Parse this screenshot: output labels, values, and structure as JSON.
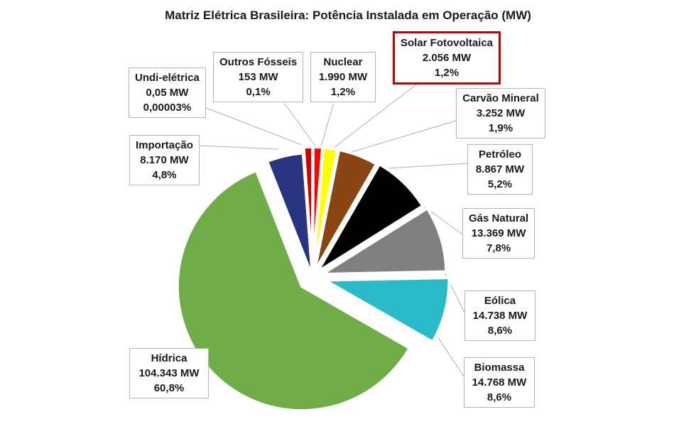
{
  "chart_data": {
    "type": "pie",
    "title": "Matriz Elétrica Brasileira: Potência Instalada em Operação (MW)",
    "slices": [
      {
        "name": "Solar Fotovoltaica",
        "value_label": "2.056 MW",
        "pct_label": "1,2%",
        "value": 2056,
        "color": "#ff0000",
        "highlight": true
      },
      {
        "name": "Carvão Mineral",
        "value_label": "3.252 MW",
        "pct_label": "1,9%",
        "value": 3252,
        "color": "#ffff00"
      },
      {
        "name": "Petróleo",
        "value_label": "8.867 MW",
        "pct_label": "5,2%",
        "value": 8867,
        "color": "#8b4513"
      },
      {
        "name": "Gás Natural",
        "value_label": "13.369 MW",
        "pct_label": "7,8%",
        "value": 13369,
        "color": "#000000"
      },
      {
        "name": "Eólica",
        "value_label": "14.738 MW",
        "pct_label": "8,6%",
        "value": 14738,
        "color": "#808080"
      },
      {
        "name": "Biomassa",
        "value_label": "14.768 MW",
        "pct_label": "8,6%",
        "value": 14768,
        "color": "#2bbac8"
      },
      {
        "name": "Hídrica",
        "value_label": "104.343 MW",
        "pct_label": "60,8%",
        "value": 104343,
        "color": "#70ad47"
      },
      {
        "name": "Importação",
        "value_label": "8.170 MW",
        "pct_label": "4,8%",
        "value": 8170,
        "color": "#283480"
      },
      {
        "name": "Undi-elétrica",
        "value_label": "0,05 MW",
        "pct_label": "0,00003%",
        "value": 0.05,
        "color": "#e60fc8"
      },
      {
        "name": "Outros Fósseis",
        "value_label": "153 MW",
        "pct_label": "0,1%",
        "value": 153,
        "color": "#9f9f9f"
      },
      {
        "name": "Nuclear",
        "value_label": "1.990 MW",
        "pct_label": "1,2%",
        "value": 1990,
        "color": "#cc0000"
      }
    ]
  }
}
